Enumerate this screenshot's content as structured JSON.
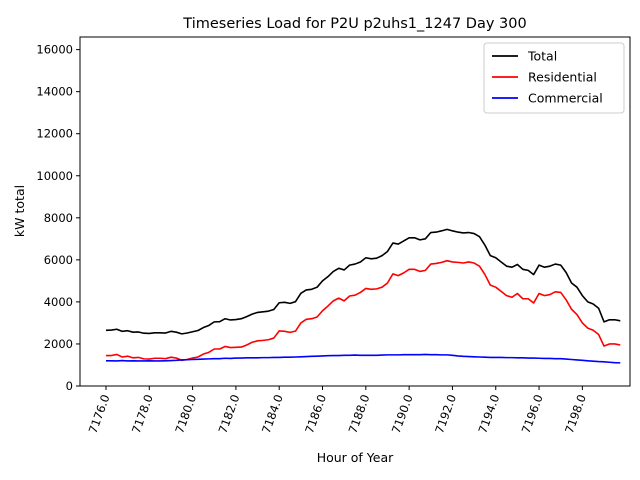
{
  "chart_data": {
    "type": "line",
    "title": "Timeseries Load for P2U p2uhs1_1247  Day 300",
    "xlabel": "Hour of Year",
    "ylabel": "kW total",
    "xlim": [
      7174.8,
      7200.2
    ],
    "ylim": [
      0,
      16600
    ],
    "xticks": [
      7176,
      7178,
      7180,
      7182,
      7184,
      7186,
      7188,
      7190,
      7192,
      7194,
      7196,
      7198
    ],
    "xtick_labels": [
      "7176.0",
      "7178.0",
      "7180.0",
      "7182.0",
      "7184.0",
      "7186.0",
      "7188.0",
      "7190.0",
      "7192.0",
      "7194.0",
      "7196.0",
      "7198.0"
    ],
    "yticks": [
      0,
      2000,
      4000,
      6000,
      8000,
      10000,
      12000,
      14000,
      16000
    ],
    "ytick_labels": [
      "0",
      "2000",
      "4000",
      "6000",
      "8000",
      "10000",
      "12000",
      "14000",
      "16000"
    ],
    "legend_position": "top-right",
    "x": [
      7176.0,
      7176.25,
      7176.5,
      7176.75,
      7177.0,
      7177.25,
      7177.5,
      7177.75,
      7178.0,
      7178.25,
      7178.5,
      7178.75,
      7179.0,
      7179.25,
      7179.5,
      7179.75,
      7180.0,
      7180.25,
      7180.5,
      7180.75,
      7181.0,
      7181.25,
      7181.5,
      7181.75,
      7182.0,
      7182.25,
      7182.5,
      7182.75,
      7183.0,
      7183.25,
      7183.5,
      7183.75,
      7184.0,
      7184.25,
      7184.5,
      7184.75,
      7185.0,
      7185.25,
      7185.5,
      7185.75,
      7186.0,
      7186.25,
      7186.5,
      7186.75,
      7187.0,
      7187.25,
      7187.5,
      7187.75,
      7188.0,
      7188.25,
      7188.5,
      7188.75,
      7189.0,
      7189.25,
      7189.5,
      7189.75,
      7190.0,
      7190.25,
      7190.5,
      7190.75,
      7191.0,
      7191.25,
      7191.5,
      7191.75,
      7192.0,
      7192.25,
      7192.5,
      7192.75,
      7193.0,
      7193.25,
      7193.5,
      7193.75,
      7194.0,
      7194.25,
      7194.5,
      7194.75,
      7195.0,
      7195.25,
      7195.5,
      7195.75,
      7196.0,
      7196.25,
      7196.5,
      7196.75,
      7197.0,
      7197.25,
      7197.5,
      7197.75,
      7198.0,
      7198.25,
      7198.5,
      7198.75,
      7199.0,
      7199.25,
      7199.5,
      7199.75
    ],
    "series": [
      {
        "name": "Total",
        "color": "#000000",
        "values": [
          2650,
          2660,
          2700,
          2600,
          2630,
          2560,
          2570,
          2510,
          2500,
          2530,
          2530,
          2520,
          2600,
          2560,
          2480,
          2520,
          2580,
          2640,
          2780,
          2880,
          3050,
          3060,
          3200,
          3140,
          3160,
          3200,
          3300,
          3420,
          3500,
          3530,
          3560,
          3640,
          3960,
          3980,
          3930,
          4010,
          4410,
          4570,
          4600,
          4700,
          5000,
          5200,
          5450,
          5600,
          5520,
          5750,
          5800,
          5900,
          6100,
          6050,
          6080,
          6200,
          6400,
          6800,
          6750,
          6900,
          7050,
          7050,
          6950,
          7000,
          7300,
          7320,
          7380,
          7450,
          7380,
          7320,
          7280,
          7300,
          7250,
          7100,
          6700,
          6200,
          6100,
          5900,
          5700,
          5650,
          5780,
          5550,
          5500,
          5300,
          5750,
          5650,
          5700,
          5800,
          5750,
          5400,
          4900,
          4700,
          4300,
          4000,
          3900,
          3700,
          3050,
          3150,
          3150,
          3100
        ]
      },
      {
        "name": "Residential",
        "color": "#ff0000",
        "values": [
          1450,
          1450,
          1500,
          1380,
          1420,
          1340,
          1360,
          1290,
          1280,
          1320,
          1320,
          1300,
          1370,
          1330,
          1220,
          1260,
          1330,
          1380,
          1520,
          1600,
          1760,
          1760,
          1880,
          1830,
          1840,
          1850,
          1950,
          2080,
          2150,
          2170,
          2200,
          2280,
          2620,
          2600,
          2550,
          2610,
          3000,
          3170,
          3200,
          3280,
          3580,
          3800,
          4050,
          4180,
          4050,
          4280,
          4320,
          4450,
          4640,
          4600,
          4620,
          4700,
          4900,
          5330,
          5250,
          5380,
          5550,
          5550,
          5450,
          5500,
          5800,
          5830,
          5880,
          5960,
          5900,
          5880,
          5850,
          5900,
          5850,
          5700,
          5300,
          4800,
          4700,
          4500,
          4300,
          4220,
          4400,
          4150,
          4150,
          3950,
          4400,
          4300,
          4350,
          4480,
          4450,
          4100,
          3650,
          3400,
          3000,
          2750,
          2650,
          2450,
          1900,
          2000,
          2000,
          1950
        ]
      },
      {
        "name": "Commercial",
        "color": "#0000ff",
        "values": [
          1200,
          1200,
          1190,
          1210,
          1190,
          1200,
          1190,
          1190,
          1200,
          1190,
          1190,
          1200,
          1210,
          1220,
          1240,
          1250,
          1260,
          1270,
          1280,
          1290,
          1300,
          1300,
          1320,
          1310,
          1330,
          1330,
          1340,
          1340,
          1340,
          1350,
          1350,
          1360,
          1360,
          1370,
          1370,
          1380,
          1390,
          1400,
          1410,
          1420,
          1430,
          1440,
          1450,
          1450,
          1460,
          1460,
          1470,
          1460,
          1460,
          1460,
          1460,
          1470,
          1480,
          1480,
          1480,
          1490,
          1490,
          1490,
          1490,
          1500,
          1490,
          1490,
          1480,
          1480,
          1460,
          1430,
          1410,
          1400,
          1390,
          1380,
          1370,
          1360,
          1360,
          1360,
          1350,
          1350,
          1340,
          1340,
          1330,
          1330,
          1320,
          1310,
          1310,
          1300,
          1300,
          1280,
          1260,
          1240,
          1220,
          1200,
          1180,
          1160,
          1150,
          1130,
          1110,
          1100
        ]
      }
    ]
  }
}
